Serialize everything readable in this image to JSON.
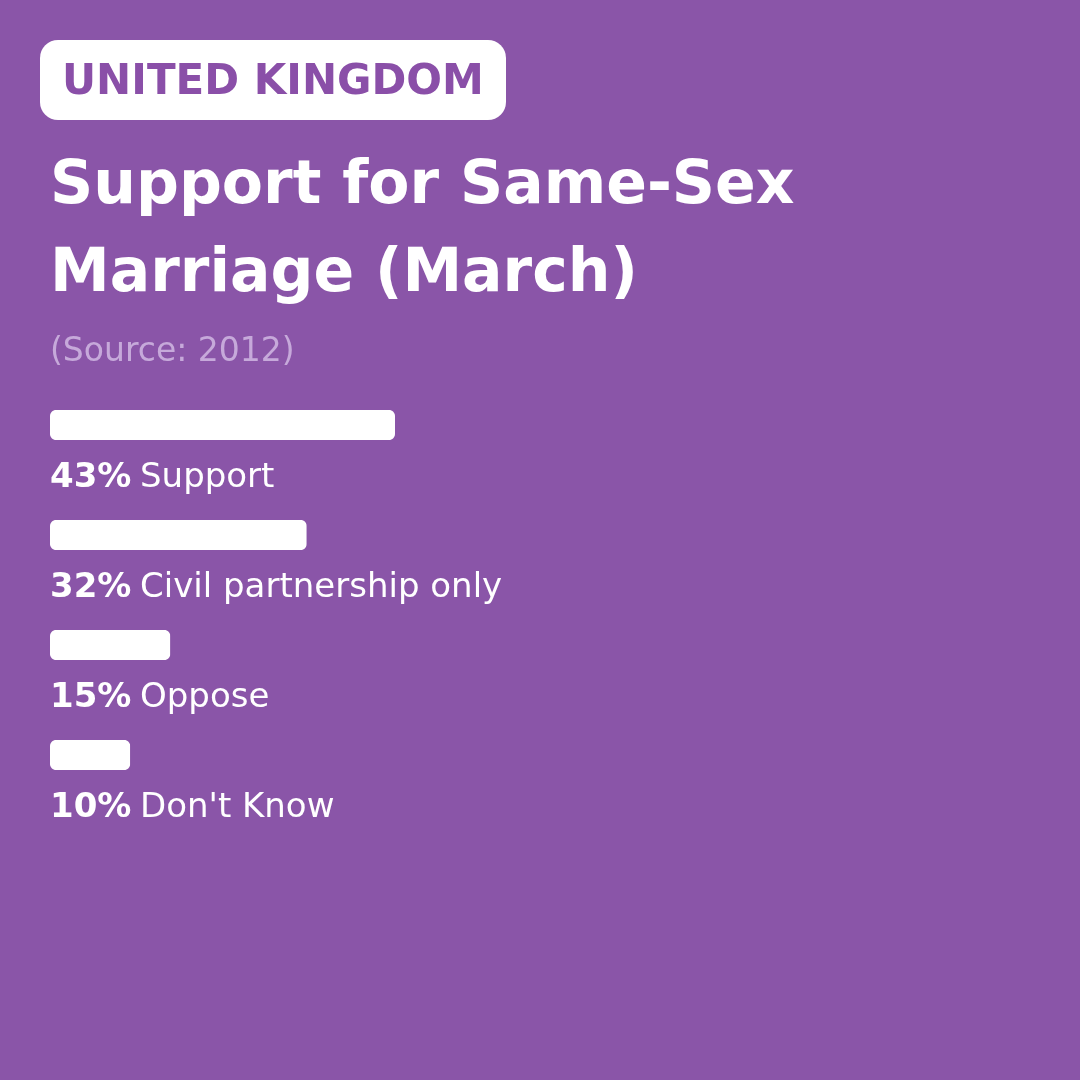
{
  "chart_data": {
    "type": "bar",
    "orientation": "horizontal",
    "title": "Support for Same-Sex Marriage (March)",
    "annotations": [
      "UNITED KINGDOM",
      "(Source: 2012)"
    ],
    "categories": [
      "Support",
      "Civil partnership only",
      "Oppose",
      "Don't Know"
    ],
    "values": [
      43,
      32,
      15,
      10
    ],
    "value_labels": [
      "43%",
      "32%",
      "15%",
      "10%"
    ],
    "color": "#ffffff",
    "tick_labels": false
  }
}
